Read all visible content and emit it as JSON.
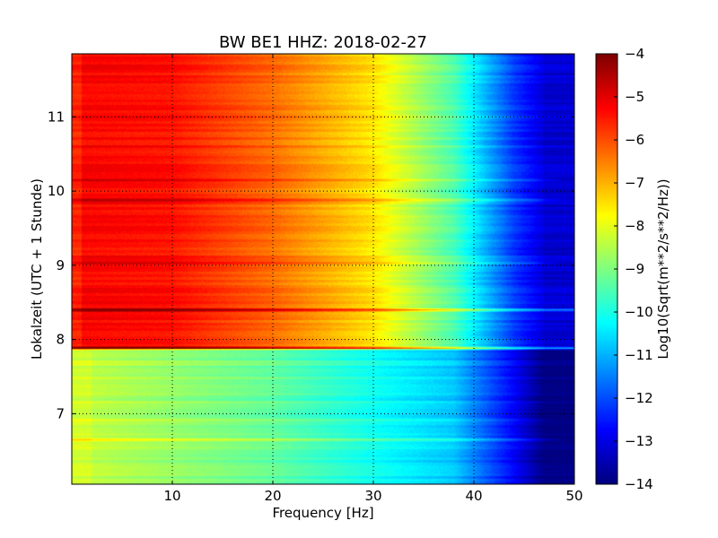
{
  "chart_data": {
    "type": "heatmap",
    "title": "BW BE1 HHZ: 2018-02-27",
    "xlabel": "Frequency [Hz]",
    "ylabel": "Lokalzeit (UTC + 1 Stunde)",
    "xlim": [
      0,
      50
    ],
    "ylim": [
      11.85,
      6.05
    ],
    "x_ticks": [
      10,
      20,
      30,
      40,
      50
    ],
    "y_ticks": [
      7,
      8,
      9,
      10,
      11
    ],
    "grid": true,
    "colorbar": {
      "label": "Log10(Sqrt(m**2/s**2/Hz))",
      "range": [
        -14,
        -4
      ],
      "ticks": [
        -4,
        -5,
        -6,
        -7,
        -8,
        -9,
        -10,
        -11,
        -12,
        -13,
        -14
      ],
      "colormap": "jet"
    },
    "regions": [
      {
        "time_range": [
          6.05,
          7.88
        ],
        "typical_values": {
          "0-5 Hz": -8.3,
          "20 Hz": -9.3,
          "35 Hz": -10.5,
          "43 Hz": -12.5,
          "47-50 Hz": -14
        }
      },
      {
        "time_range": [
          7.88,
          11.85
        ],
        "typical_values": {
          "0-10 Hz": -5.2,
          "20 Hz": -6.3,
          "30 Hz": -7.5,
          "38 Hz": -9.5,
          "43 Hz": -12,
          "47-50 Hz": -13.2
        }
      }
    ],
    "events": [
      {
        "time": 6.65,
        "offset": 0.9
      },
      {
        "time": 6.92,
        "offset": 0.5
      },
      {
        "time": 7.88,
        "offset": 2.0
      },
      {
        "time": 8.4,
        "offset": 1.8
      },
      {
        "time": 9.03,
        "offset": 0.8
      },
      {
        "time": 9.88,
        "offset": 0.8
      },
      {
        "time": 10.15,
        "offset": 0.8
      }
    ]
  }
}
